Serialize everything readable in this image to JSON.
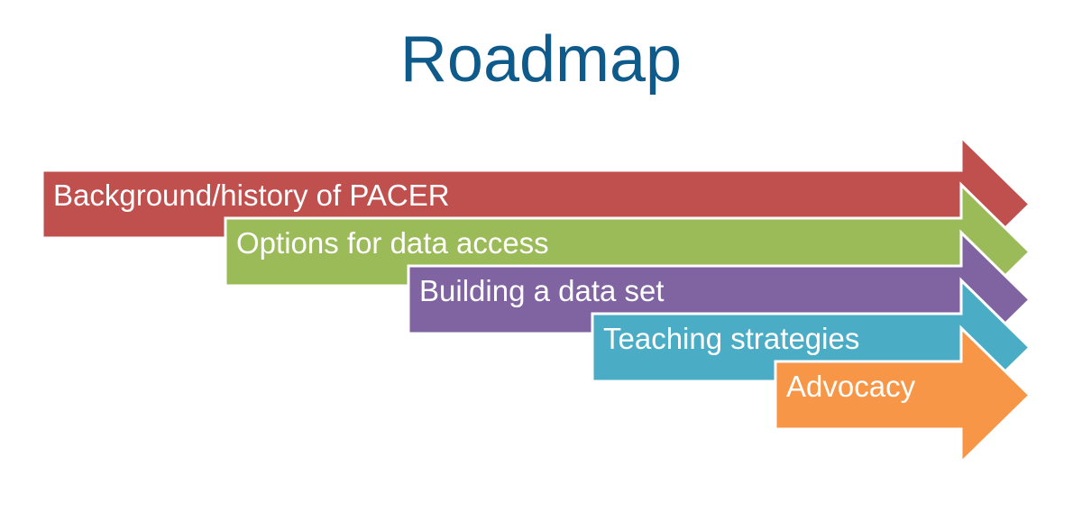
{
  "title": "Roadmap",
  "title_color": "#0E5A8A",
  "arrows": [
    {
      "label": "Background/history of PACER",
      "color": "#C0504D"
    },
    {
      "label": "Options for data access",
      "color": "#9BBB59"
    },
    {
      "label": "Building a data set",
      "color": "#8064A2"
    },
    {
      "label": "Teaching strategies",
      "color": "#4BACC6"
    },
    {
      "label": "Advocacy",
      "color": "#F79646"
    }
  ]
}
